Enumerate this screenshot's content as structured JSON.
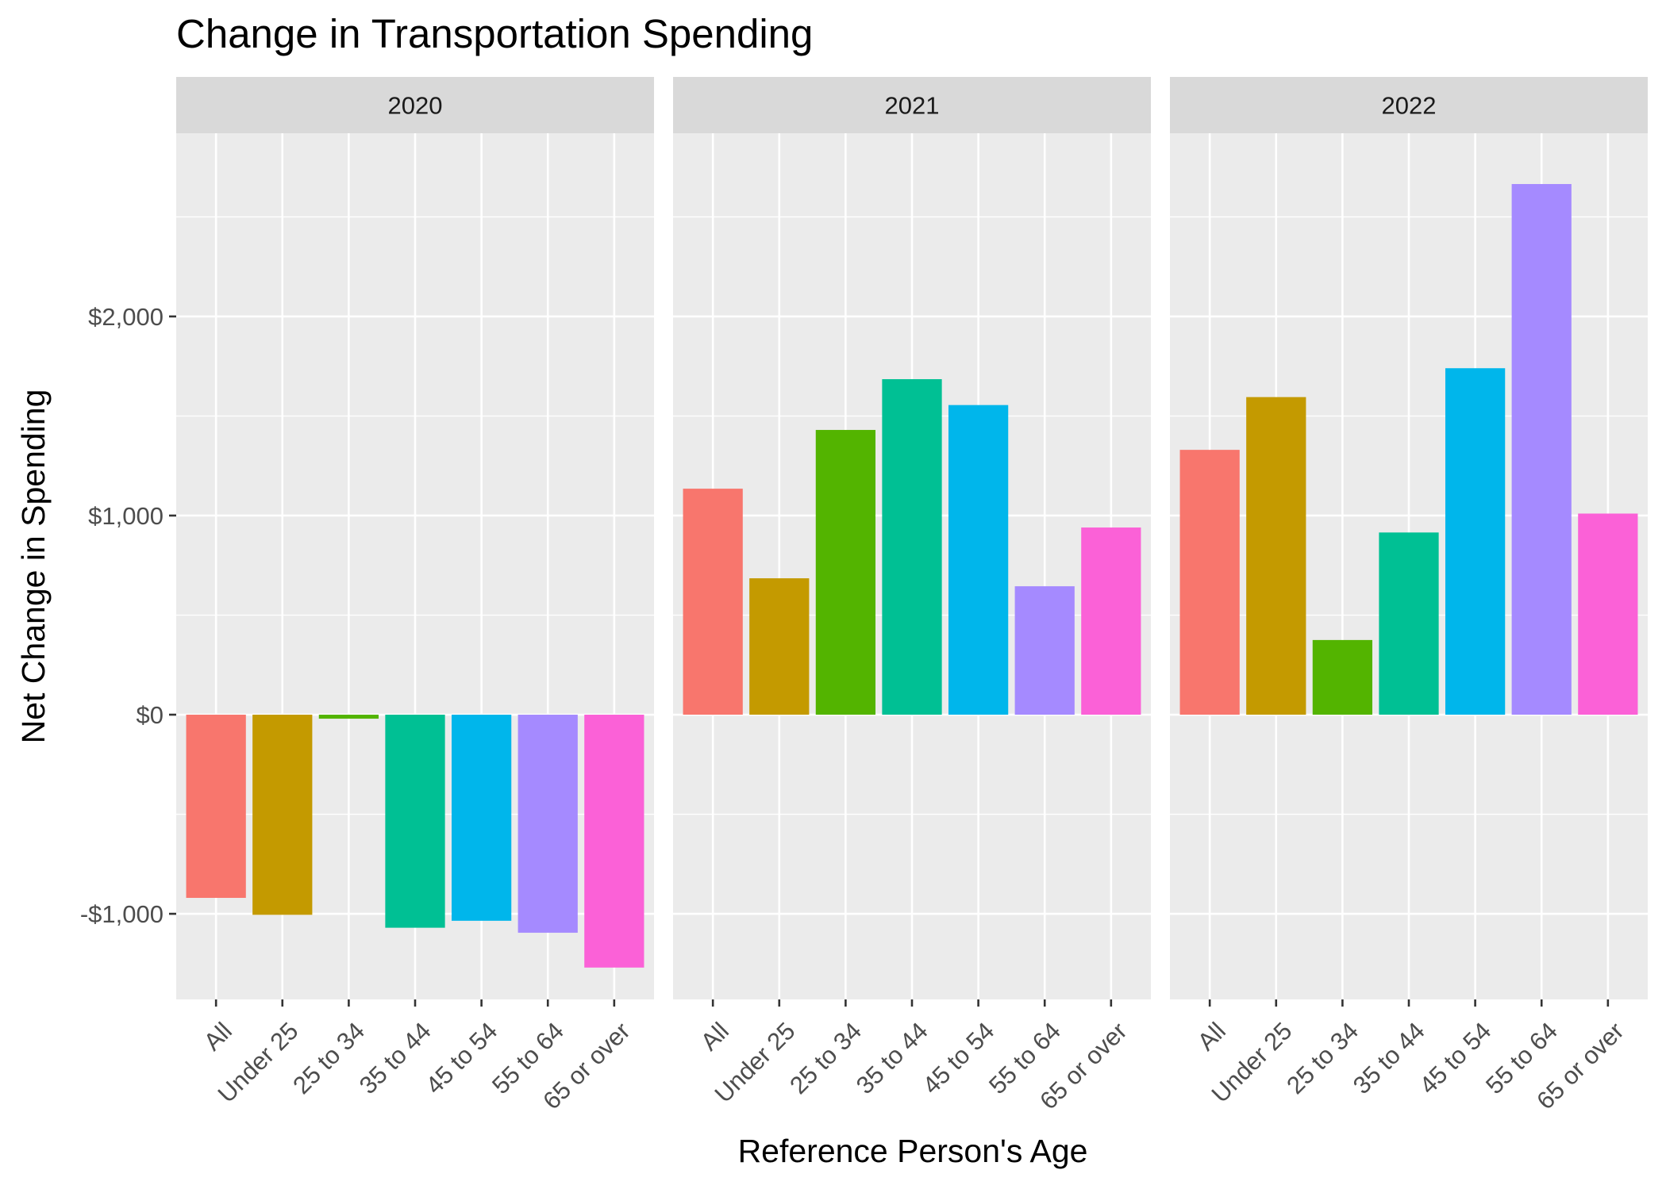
{
  "chart_data": {
    "type": "bar",
    "title": "Change in Transportation Spending",
    "xlabel": "Reference Person's Age",
    "ylabel": "Net Change in Spending",
    "ylim": [
      -1430,
      2920
    ],
    "y_ticks": [
      -1000,
      0,
      1000,
      2000
    ],
    "y_tick_labels": [
      "-$1,000",
      "$0",
      "$1,000",
      "$2,000"
    ],
    "categories": [
      "All",
      "Under 25",
      "25 to 34",
      "35 to 44",
      "45 to 54",
      "55 to 64",
      "65 or over"
    ],
    "colors": [
      "#F8766D",
      "#C49A00",
      "#53B400",
      "#00C094",
      "#00B6EB",
      "#A58AFF",
      "#FB61D7"
    ],
    "grid": true,
    "legend": "none",
    "facets": [
      {
        "label": "2020",
        "values": [
          -920,
          -1005,
          -20,
          -1070,
          -1035,
          -1095,
          -1270
        ]
      },
      {
        "label": "2021",
        "values": [
          1135,
          685,
          1430,
          1685,
          1555,
          645,
          940
        ]
      },
      {
        "label": "2022",
        "values": [
          1330,
          1595,
          375,
          915,
          1740,
          2665,
          1010
        ]
      }
    ]
  }
}
